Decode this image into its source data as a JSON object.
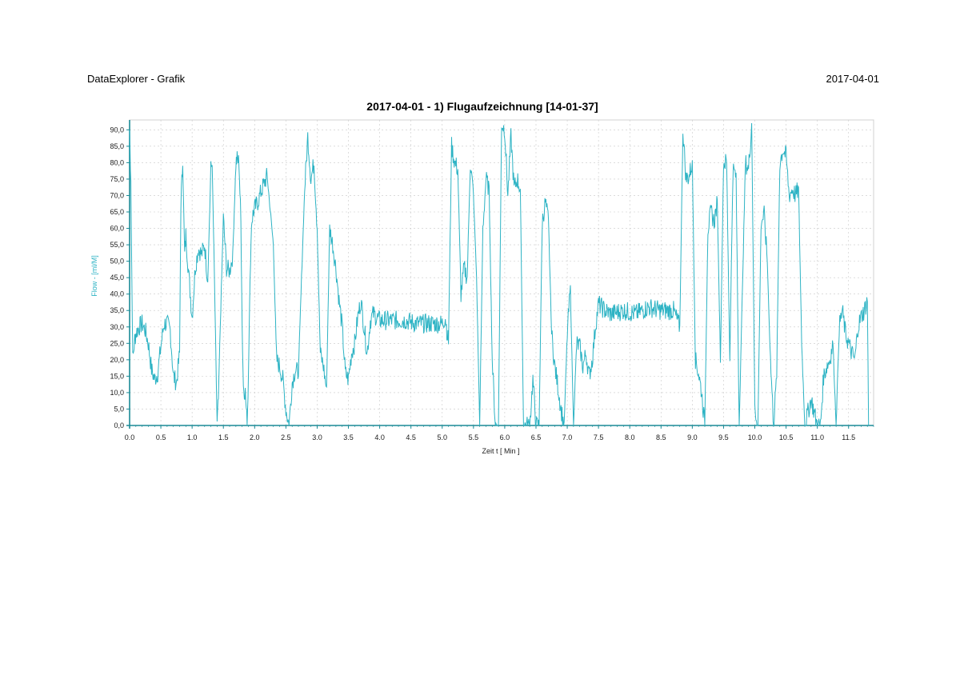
{
  "header": {
    "app_title": "DataExplorer - Grafik",
    "date": "2017-04-01"
  },
  "colors": {
    "series": "#2db3c4",
    "axis": "#1a8a96",
    "grid": "#c8c8c8",
    "frame": "#d0d0d0",
    "ylabel": "#2db3c4"
  },
  "chart_data": {
    "type": "line",
    "title": "2017-04-01 - 1) Flugaufzeichnung [14-01-37]",
    "xlabel": "Zeit  t  [ Min ]",
    "ylabel": "Flow  -  [ml/M]",
    "xlim": [
      0,
      11.9
    ],
    "ylim": [
      0,
      93
    ],
    "x_ticks": [
      "0.0",
      "0.5",
      "1.0",
      "1.5",
      "2.0",
      "2.5",
      "3.0",
      "3.5",
      "4.0",
      "4.5",
      "5.0",
      "5.5",
      "6.0",
      "6.5",
      "7.0",
      "7.5",
      "8.0",
      "8.5",
      "9.0",
      "9.5",
      "10.0",
      "10.5",
      "11.0",
      "11.5"
    ],
    "y_ticks": [
      "0,0",
      "5,0",
      "10,0",
      "15,0",
      "20,0",
      "25,0",
      "30,0",
      "35,0",
      "40,0",
      "45,0",
      "50,0",
      "55,0",
      "60,0",
      "65,0",
      "70,0",
      "75,0",
      "80,0",
      "85,0",
      "90,0"
    ],
    "grid": true,
    "legend": "none",
    "series": [
      {
        "x": [
          0.0,
          0.02,
          0.05,
          0.08,
          0.1,
          0.15,
          0.2,
          0.25,
          0.3,
          0.35,
          0.4,
          0.45,
          0.5,
          0.55,
          0.6,
          0.65,
          0.7,
          0.75,
          0.8,
          0.82,
          0.85,
          0.88,
          0.9,
          0.95,
          1.0,
          1.05,
          1.1,
          1.15,
          1.2,
          1.25,
          1.3,
          1.32,
          1.35,
          1.38,
          1.4,
          1.42,
          1.45,
          1.5,
          1.55,
          1.6,
          1.65,
          1.7,
          1.72,
          1.75,
          1.78,
          1.8,
          1.82,
          1.85,
          1.88,
          1.9,
          1.92,
          1.95,
          1.98,
          2.0,
          2.05,
          2.1,
          2.2,
          2.3,
          2.35,
          2.4,
          2.45,
          2.5,
          2.55,
          2.6,
          2.65,
          2.7,
          2.75,
          2.8,
          2.85,
          2.9,
          2.95,
          3.0,
          3.05,
          3.1,
          3.15,
          3.2,
          3.25,
          3.3,
          3.35,
          3.4,
          3.45,
          3.5,
          3.55,
          3.6,
          3.65,
          3.7,
          3.75,
          3.8,
          3.85,
          3.9,
          3.95,
          4.0,
          4.2,
          4.4,
          4.6,
          4.8,
          5.0,
          5.05,
          5.1,
          5.15,
          5.2,
          5.25,
          5.3,
          5.35,
          5.4,
          5.45,
          5.5,
          5.55,
          5.6,
          5.65,
          5.7,
          5.75,
          5.8,
          5.85,
          5.9,
          5.95,
          6.0,
          6.05,
          6.1,
          6.15,
          6.2,
          6.25,
          6.3,
          6.35,
          6.4,
          6.45,
          6.5,
          6.55,
          6.6,
          6.65,
          6.7,
          6.75,
          6.8,
          6.85,
          6.9,
          6.95,
          7.0,
          7.05,
          7.1,
          7.15,
          7.2,
          7.25,
          7.3,
          7.35,
          7.4,
          7.45,
          7.5,
          7.55,
          7.6,
          7.7,
          7.9,
          8.1,
          8.3,
          8.5,
          8.7,
          8.8,
          8.85,
          8.9,
          8.95,
          9.0,
          9.05,
          9.1,
          9.15,
          9.2,
          9.25,
          9.3,
          9.35,
          9.4,
          9.45,
          9.5,
          9.55,
          9.6,
          9.65,
          9.7,
          9.75,
          9.8,
          9.85,
          9.9,
          9.95,
          10.0,
          10.05,
          10.1,
          10.15,
          10.2,
          10.25,
          10.3,
          10.35,
          10.4,
          10.45,
          10.5,
          10.55,
          10.6,
          10.65,
          10.7,
          10.75,
          10.8,
          10.9,
          11.0,
          11.05,
          11.1,
          11.15,
          11.2,
          11.25,
          11.3,
          11.35,
          11.4,
          11.45,
          11.5,
          11.55,
          11.6,
          11.65,
          11.7,
          11.75,
          11.8,
          11.82
        ],
        "y": [
          90,
          75,
          20,
          26,
          28,
          30,
          31,
          29,
          25,
          17,
          14,
          16,
          24,
          31,
          31,
          29,
          15,
          13,
          22,
          68,
          80,
          52,
          58,
          45,
          33,
          48,
          54,
          52,
          55,
          44,
          78,
          80,
          52,
          20,
          0,
          8,
          30,
          63,
          48,
          47,
          52,
          80,
          81,
          80,
          62,
          30,
          12,
          10,
          0,
          15,
          38,
          62,
          65,
          66,
          68,
          71,
          76,
          55,
          20,
          18,
          14,
          5,
          0,
          13,
          17,
          16,
          45,
          72,
          88,
          75,
          80,
          60,
          22,
          18,
          11,
          60,
          55,
          48,
          38,
          30,
          16,
          14,
          22,
          25,
          33,
          38,
          30,
          22,
          32,
          34,
          33,
          32,
          32,
          32,
          31,
          31,
          31,
          33,
          25,
          85,
          80,
          78,
          40,
          48,
          45,
          80,
          70,
          45,
          0,
          60,
          75,
          72,
          20,
          0,
          0,
          92,
          90,
          70,
          88,
          72,
          75,
          72,
          0,
          0,
          0,
          14,
          0,
          0,
          62,
          68,
          62,
          28,
          18,
          12,
          5,
          0,
          28,
          42,
          0,
          25,
          24,
          18,
          22,
          15,
          20,
          30,
          37,
          36,
          35,
          34,
          35,
          34,
          36,
          35,
          35,
          30,
          90,
          75,
          76,
          80,
          20,
          16,
          10,
          0,
          60,
          65,
          62,
          68,
          20,
          80,
          80,
          20,
          78,
          76,
          0,
          40,
          80,
          78,
          92,
          5,
          0,
          62,
          64,
          50,
          20,
          0,
          15,
          80,
          84,
          82,
          70,
          72,
          70,
          72,
          25,
          0,
          8,
          0,
          0,
          15,
          18,
          20,
          25,
          0,
          30,
          35,
          28,
          25,
          22,
          20,
          30,
          33,
          35,
          38,
          0
        ]
      }
    ]
  }
}
